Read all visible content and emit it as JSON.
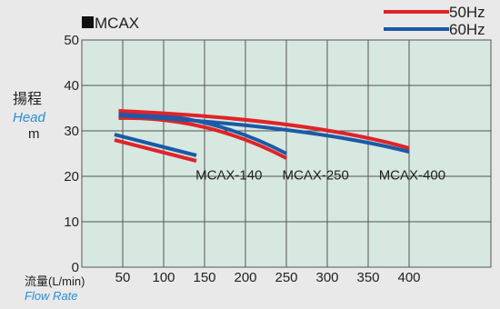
{
  "chart_data": {
    "type": "line",
    "title": "MCAX",
    "ylabel_jp": "揚程",
    "ylabel_en": "Head",
    "yunit": "m",
    "xlabel_jp": "流量(L/min)",
    "xlabel_en": "Flow Rate",
    "xlim": [
      0,
      500
    ],
    "ylim": [
      0,
      50
    ],
    "xticks": [
      50,
      100,
      150,
      200,
      250,
      300,
      350,
      400
    ],
    "yticks": [
      0,
      10,
      20,
      30,
      40,
      50
    ],
    "grid": true,
    "legend_position": "top-right",
    "legend": [
      {
        "label": "50Hz",
        "color": "#e02329"
      },
      {
        "label": "60Hz",
        "color": "#1b5aa6"
      }
    ],
    "plot_background": "#d6e8e0",
    "series": [
      {
        "model": "MCAX-140",
        "frequency": "50Hz",
        "color": "#e02329",
        "points": [
          [
            40,
            28
          ],
          [
            140,
            23.4
          ]
        ]
      },
      {
        "model": "MCAX-140",
        "frequency": "60Hz",
        "color": "#1b5aa6",
        "points": [
          [
            40,
            29.2
          ],
          [
            140,
            24.6
          ]
        ]
      },
      {
        "model": "MCAX-250",
        "frequency": "50Hz",
        "color": "#e02329",
        "points": [
          [
            45,
            32.8
          ],
          [
            150,
            30.8
          ],
          [
            250,
            24
          ]
        ]
      },
      {
        "model": "MCAX-250",
        "frequency": "60Hz",
        "color": "#1b5aa6",
        "points": [
          [
            45,
            33.8
          ],
          [
            150,
            31.8
          ],
          [
            250,
            25
          ]
        ]
      },
      {
        "model": "MCAX-400",
        "frequency": "50Hz",
        "color": "#e02329",
        "points": [
          [
            45,
            34.4
          ],
          [
            250,
            31.4
          ],
          [
            400,
            26.2
          ]
        ]
      },
      {
        "model": "MCAX-400",
        "frequency": "60Hz",
        "color": "#1b5aa6",
        "points": [
          [
            45,
            33.4
          ],
          [
            250,
            30.2
          ],
          [
            400,
            25.4
          ]
        ]
      }
    ],
    "annotations": [
      {
        "text": "MCAX-140",
        "x": 139,
        "y": 19.3
      },
      {
        "text": "MCAX-250",
        "x": 245,
        "y": 19.3
      },
      {
        "text": "MCAX-400",
        "x": 363,
        "y": 19.3
      }
    ]
  }
}
